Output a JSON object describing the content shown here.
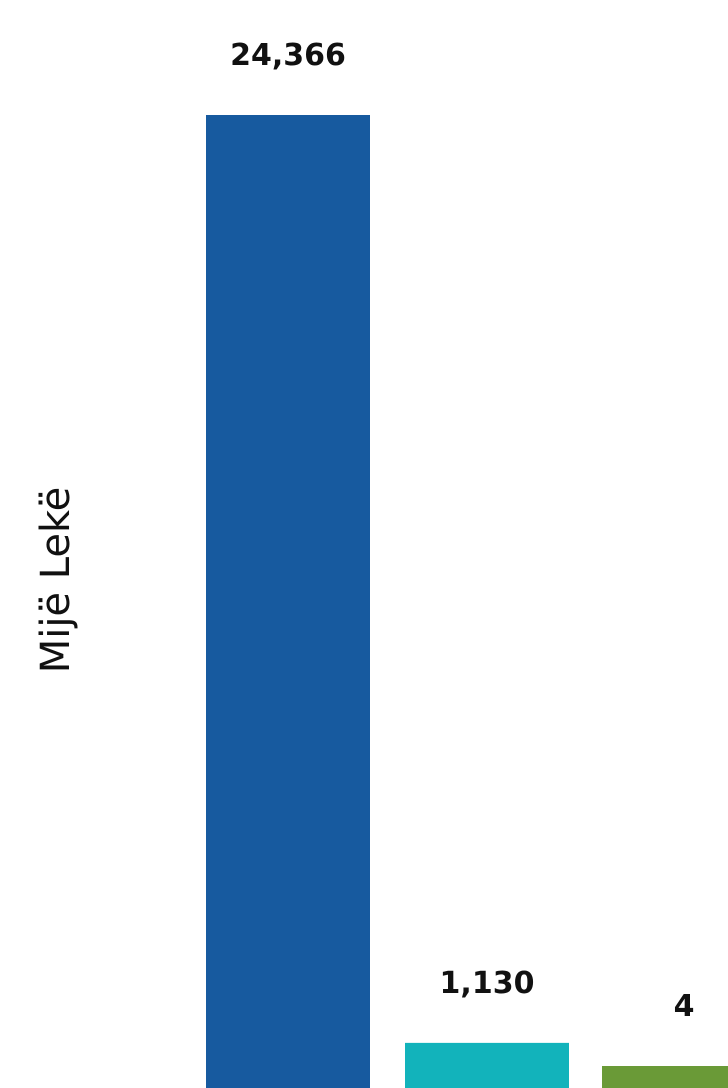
{
  "chart_data": {
    "type": "bar",
    "title": "",
    "xlabel": "",
    "ylabel": "Mijë Lekë",
    "values": [
      24366,
      1130,
      4
    ],
    "data_labels": [
      "24,366",
      "1,130",
      "4"
    ],
    "colors": [
      "#175a9f",
      "#12b3bb",
      "#6a9a37"
    ],
    "ylim": [
      0,
      24366
    ],
    "grid": false,
    "legend": "none"
  }
}
